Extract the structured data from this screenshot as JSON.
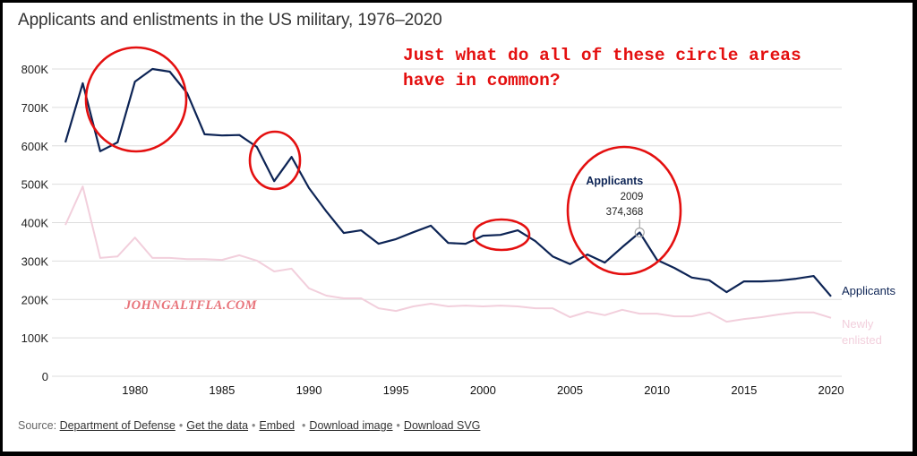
{
  "page": {
    "title": "Applicants and enlistments in the US military, 1976–2020",
    "annotation_note": "Just what do all of these circle areas\nhave in common?",
    "watermark": "JOHNGALTFLA.COM"
  },
  "footer": {
    "source_label": "Source:",
    "links": [
      "Department of Defense",
      "Get the data",
      "Embed",
      "Download image",
      "Download SVG"
    ]
  },
  "colors": {
    "applicants": "#0d2455",
    "newly_enlisted": "#f2cfdc",
    "annotation": "#e41010",
    "grid": "#dddddd"
  },
  "chart_data": {
    "type": "line",
    "title": "Applicants and enlistments in the US military, 1976–2020",
    "xlabel": "",
    "ylabel": "",
    "x": [
      1976,
      1977,
      1978,
      1979,
      1980,
      1981,
      1982,
      1983,
      1984,
      1985,
      1986,
      1987,
      1988,
      1989,
      1990,
      1991,
      1992,
      1993,
      1994,
      1995,
      1996,
      1997,
      1998,
      1999,
      2000,
      2001,
      2002,
      2003,
      2004,
      2005,
      2006,
      2007,
      2008,
      2009,
      2010,
      2011,
      2012,
      2013,
      2014,
      2015,
      2016,
      2017,
      2018,
      2019,
      2020
    ],
    "xlim": [
      1976,
      2020
    ],
    "ylim": [
      0,
      800000
    ],
    "grid": true,
    "x_ticks": [
      "1980",
      "1985",
      "1990",
      "1995",
      "2000",
      "2005",
      "2010",
      "2015",
      "2020"
    ],
    "x_tick_values": [
      1980,
      1985,
      1990,
      1995,
      2000,
      2005,
      2010,
      2015,
      2020
    ],
    "y_ticks": [
      "0",
      "100K",
      "200K",
      "300K",
      "400K",
      "500K",
      "600K",
      "700K",
      "800K"
    ],
    "y_tick_values": [
      0,
      100000,
      200000,
      300000,
      400000,
      500000,
      600000,
      700000,
      800000
    ],
    "legend": "inline-right-end",
    "series": [
      {
        "name": "Applicants",
        "values": [
          609000,
          763000,
          586000,
          609000,
          767000,
          800000,
          793000,
          737000,
          630000,
          627000,
          628000,
          597000,
          508000,
          571000,
          490000,
          429000,
          373000,
          380000,
          345000,
          357000,
          375000,
          392000,
          347000,
          345000,
          366000,
          368000,
          380000,
          352000,
          312000,
          292000,
          317000,
          296000,
          336000,
          374368,
          303000,
          282000,
          257000,
          250000,
          219000,
          247000,
          247000,
          249000,
          254000,
          261000,
          208000
        ]
      },
      {
        "name": "Newly enlisted",
        "values": [
          394000,
          494000,
          308000,
          312000,
          361000,
          308000,
          308000,
          305000,
          305000,
          303000,
          315000,
          301000,
          273000,
          280000,
          229000,
          210000,
          203000,
          203000,
          177000,
          170000,
          182000,
          189000,
          182000,
          184000,
          182000,
          184000,
          182000,
          177000,
          177000,
          154000,
          168000,
          159000,
          173000,
          163000,
          163000,
          156000,
          156000,
          166000,
          142000,
          149000,
          154000,
          161000,
          166000,
          166000,
          152000
        ]
      }
    ],
    "tooltip": {
      "series": "Applicants",
      "year": "2009",
      "value": "374,368"
    },
    "annotations": [
      {
        "type": "circle",
        "label": "circle-1979-1983",
        "center_year": 1980,
        "center_value": 700000
      },
      {
        "type": "circle",
        "label": "circle-1987-1989",
        "center_year": 1988,
        "center_value": 560000
      },
      {
        "type": "circle",
        "label": "circle-2000-2002",
        "center_year": 2001,
        "center_value": 368000
      },
      {
        "type": "circle",
        "label": "circle-2007-2010",
        "center_year": 2009,
        "center_value": 400000
      }
    ]
  }
}
